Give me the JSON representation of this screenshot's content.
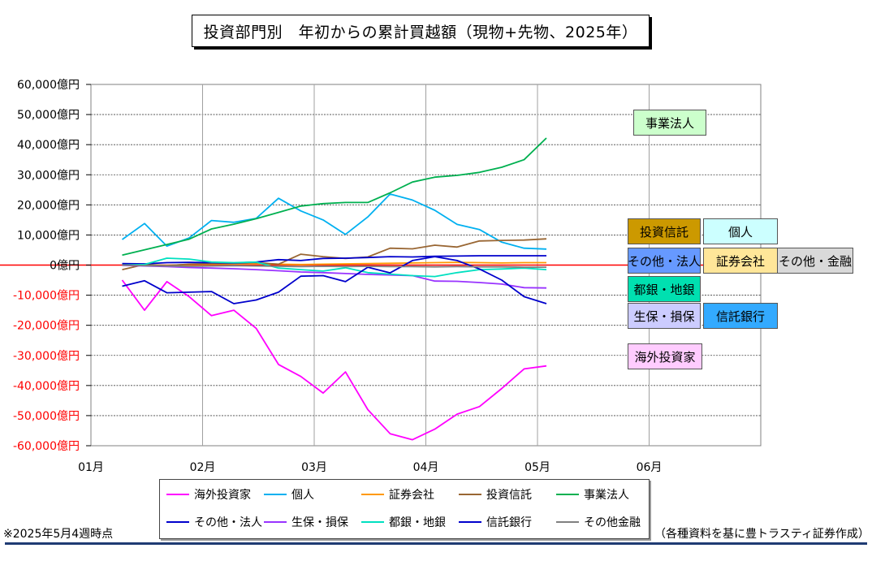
{
  "title": "投資部門別　年初からの累計買越額（現物+先物、2025年）",
  "footnote": "※2025年5月4週時点",
  "source": "（各種資料を基に豊トラスティ証券作成）",
  "chart_data": {
    "type": "line",
    "title": "投資部門別　年初からの累計買越額（現物+先物、2025年）",
    "xlabel": "",
    "ylabel": "",
    "x_ticks": [
      "01月",
      "02月",
      "03月",
      "04月",
      "05月",
      "06月"
    ],
    "x_range": [
      0,
      30
    ],
    "y_ticks": [
      "60,000億円",
      "50,000億円",
      "40,000億円",
      "30,000億円",
      "20,000億円",
      "10,000億円",
      "0億円",
      "-10,000億円",
      "-20,000億円",
      "-30,000億円",
      "-40,000億円",
      "-50,000億円",
      "-60,000億円"
    ],
    "ylim": [
      -60000,
      60000
    ],
    "grid": true,
    "legend_position": "bottom",
    "x_weeks": [
      1.4,
      2.4,
      3.4,
      4.4,
      5.4,
      6.4,
      7.4,
      8.4,
      9.4,
      10.4,
      11.4,
      12.4,
      13.4,
      14.4,
      15.4,
      16.4,
      17.4,
      18.4,
      19.4,
      20.4,
      21.4
    ],
    "series": [
      {
        "name": "海外投資家",
        "color": "#ff00ff",
        "label_bg": "#ffccff",
        "values": [
          -5000,
          -15000,
          -5500,
          -10500,
          -16800,
          -15000,
          -21000,
          -33000,
          -37000,
          -42500,
          -35500,
          -48000,
          -56000,
          -58000,
          -54500,
          -49500,
          -47000,
          -41000,
          -34500,
          -33500,
          null
        ]
      },
      {
        "name": "個人",
        "color": "#00b0f0",
        "label_bg": "#ccffff",
        "values": [
          8500,
          13800,
          6300,
          9000,
          14800,
          14200,
          15500,
          22200,
          18000,
          15000,
          10200,
          16000,
          23600,
          21600,
          18200,
          13500,
          11800,
          7600,
          5600,
          5300,
          null
        ]
      },
      {
        "name": "証券会社",
        "color": "#ff9900",
        "label_bg": "#ffe699",
        "values": [
          0,
          100,
          -100,
          200,
          300,
          400,
          500,
          300,
          200,
          300,
          400,
          500,
          600,
          700,
          800,
          900,
          800,
          700,
          800,
          800,
          null
        ]
      },
      {
        "name": "投資信託",
        "color": "#996633",
        "label_bg": "#cc9900",
        "values": [
          -1500,
          200,
          -200,
          300,
          500,
          600,
          800,
          300,
          3600,
          2800,
          2200,
          2700,
          5600,
          5400,
          6600,
          6000,
          8000,
          8200,
          8300,
          8700,
          null
        ]
      },
      {
        "name": "事業法人",
        "color": "#00b050",
        "label_bg": "#ccffcc",
        "values": [
          3300,
          null,
          null,
          8600,
          12000,
          13600,
          15400,
          17500,
          19600,
          20400,
          20800,
          20800,
          24000,
          27600,
          29200,
          29800,
          30800,
          32500,
          35000,
          42200,
          null
        ]
      },
      {
        "name": "その他・法人",
        "color": "#0000cc",
        "label_bg": "#6699ff",
        "values": [
          500,
          400,
          800,
          900,
          800,
          700,
          1000,
          1800,
          1500,
          2200,
          2300,
          2500,
          2800,
          2700,
          2900,
          3000,
          3100,
          3100,
          3100,
          3100,
          null
        ]
      },
      {
        "name": "生保・損保",
        "color": "#9933ff",
        "label_bg": "#ccccff",
        "values": [
          -100,
          -300,
          -500,
          -800,
          -1000,
          -1200,
          -1500,
          -1900,
          -2300,
          -2500,
          -2800,
          -3100,
          -3300,
          -3500,
          -5300,
          -5400,
          -5800,
          -6300,
          -7500,
          -7600,
          null
        ]
      },
      {
        "name": "都銀・地銀",
        "color": "#00e0c0",
        "label_bg": "#00e0b0",
        "values": [
          0,
          200,
          2300,
          2000,
          1000,
          800,
          1000,
          -1000,
          -1500,
          -2000,
          -900,
          -2500,
          -3000,
          -3500,
          -3800,
          -2500,
          -1500,
          -1300,
          -1000,
          -1500,
          null
        ]
      },
      {
        "name": "信託銀行",
        "color": "#0000cc",
        "label_bg": "#33aaff",
        "values": [
          -7000,
          -5200,
          -9200,
          -9000,
          -8800,
          -12800,
          -11600,
          -9000,
          -3700,
          -3500,
          -5500,
          -700,
          -2600,
          1500,
          2800,
          1500,
          -1300,
          -5000,
          -10500,
          -12800,
          null
        ]
      },
      {
        "name": "その他金融",
        "color": "#808080",
        "label_bg": "#d9d9d9",
        "values": [
          0,
          -200,
          -300,
          -400,
          -300,
          -200,
          -300,
          -400,
          -500,
          -400,
          -500,
          -400,
          -500,
          -500,
          -600,
          -500,
          -600,
          -600,
          -700,
          -700,
          null
        ]
      }
    ]
  },
  "labels": [
    {
      "text": "事業法人",
      "bg": "#ccffcc"
    },
    {
      "text": "投資信託",
      "bg": "#cc9900"
    },
    {
      "text": "個人",
      "bg": "#ccffff"
    },
    {
      "text": "その他・法人",
      "bg": "#6699ff"
    },
    {
      "text": "証券会社",
      "bg": "#ffe699"
    },
    {
      "text": "その他・金融",
      "bg": "#d9d9d9"
    },
    {
      "text": "都銀・地銀",
      "bg": "#00e0b0"
    },
    {
      "text": "生保・損保",
      "bg": "#ccccff"
    },
    {
      "text": "信託銀行",
      "bg": "#33aaff"
    },
    {
      "text": "海外投資家",
      "bg": "#ffccff"
    }
  ],
  "legend": [
    {
      "name": "海外投資家",
      "color": "#ff00ff"
    },
    {
      "name": "個人",
      "color": "#00b0f0"
    },
    {
      "name": "証券会社",
      "color": "#ff9900"
    },
    {
      "name": "投資信託",
      "color": "#996633"
    },
    {
      "name": "事業法人",
      "color": "#00b050"
    },
    {
      "name": "その他・法人",
      "color": "#0000cc"
    },
    {
      "name": "生保・損保",
      "color": "#9933ff"
    },
    {
      "name": "都銀・地銀",
      "color": "#00e0c0"
    },
    {
      "name": "信託銀行",
      "color": "#0000cc"
    },
    {
      "name": "その他金融",
      "color": "#808080"
    }
  ]
}
